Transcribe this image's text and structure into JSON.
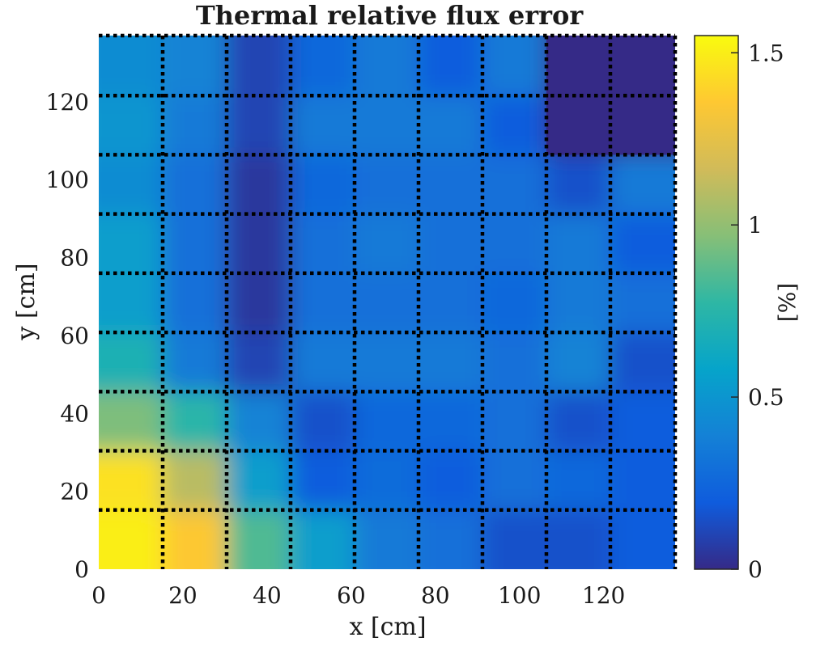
{
  "chart_data": {
    "type": "heatmap",
    "title": "Thermal relative flux error",
    "xlabel": "x [cm]",
    "ylabel": "y [cm]",
    "xlim": [
      0,
      137
    ],
    "ylim": [
      0,
      137
    ],
    "xticks": [
      0,
      20,
      40,
      60,
      80,
      100,
      120
    ],
    "yticks": [
      0,
      20,
      40,
      60,
      80,
      100,
      120
    ],
    "grid": {
      "style": "dotted",
      "color": "#000000",
      "lines": [
        15.2,
        30.4,
        45.6,
        60.8,
        76.0,
        91.2,
        106.4,
        121.6
      ],
      "cells_per_axis": 9
    },
    "colorbar": {
      "label": "[%]",
      "range": [
        0,
        1.55
      ],
      "ticks": [
        0,
        0.5,
        1,
        1.5
      ],
      "tick_labels": [
        "0",
        "0.5",
        "1",
        "1.5"
      ],
      "colormap": "parula",
      "colors": [
        "#352a87",
        "#0f5cdd",
        "#1481d6",
        "#06a4ca",
        "#2eb7a4",
        "#87bf77",
        "#d1bb59",
        "#fec832",
        "#f9fb0e"
      ]
    },
    "cell_values_note": "9x9 block values, rows listed from bottom (y=0) to top (y=137), columns from left (x=0) to right (x=137); null = masked region",
    "cell_values": [
      [
        1.5,
        1.35,
        0.85,
        0.55,
        0.35,
        0.3,
        0.15,
        0.15,
        0.2
      ],
      [
        1.45,
        1.1,
        0.55,
        0.2,
        0.28,
        0.2,
        0.3,
        0.25,
        0.2
      ],
      [
        0.95,
        0.75,
        0.4,
        0.15,
        0.25,
        0.25,
        0.3,
        0.15,
        0.2
      ],
      [
        0.7,
        0.35,
        0.1,
        0.35,
        0.35,
        0.35,
        0.3,
        0.4,
        0.15
      ],
      [
        0.55,
        0.3,
        0.05,
        0.3,
        0.3,
        0.3,
        0.25,
        0.35,
        0.3
      ],
      [
        0.55,
        0.3,
        0.05,
        0.3,
        0.35,
        0.3,
        0.3,
        0.35,
        0.2
      ],
      [
        0.45,
        0.3,
        0.05,
        0.25,
        0.3,
        0.3,
        0.3,
        0.15,
        0.35
      ],
      [
        0.5,
        0.35,
        0.1,
        0.35,
        0.35,
        0.35,
        0.2,
        null,
        null
      ],
      [
        0.45,
        0.4,
        0.1,
        0.25,
        0.35,
        0.2,
        0.35,
        null,
        null
      ]
    ],
    "masked_value": 0
  }
}
